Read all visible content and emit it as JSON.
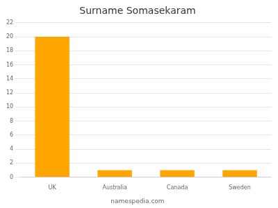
{
  "chart_data": {
    "type": "bar",
    "title": "Surname Somasekaram",
    "categories": [
      "UK",
      "Australia",
      "Canada",
      "Sweden"
    ],
    "values": [
      20,
      1,
      1,
      1
    ],
    "color": "#FFA500",
    "ylim": [
      0,
      22
    ],
    "yticks": [
      0,
      2,
      4,
      6,
      8,
      10,
      12,
      14,
      16,
      18,
      20,
      22
    ],
    "grid": true,
    "annotations": [
      "namespedia.com"
    ]
  }
}
